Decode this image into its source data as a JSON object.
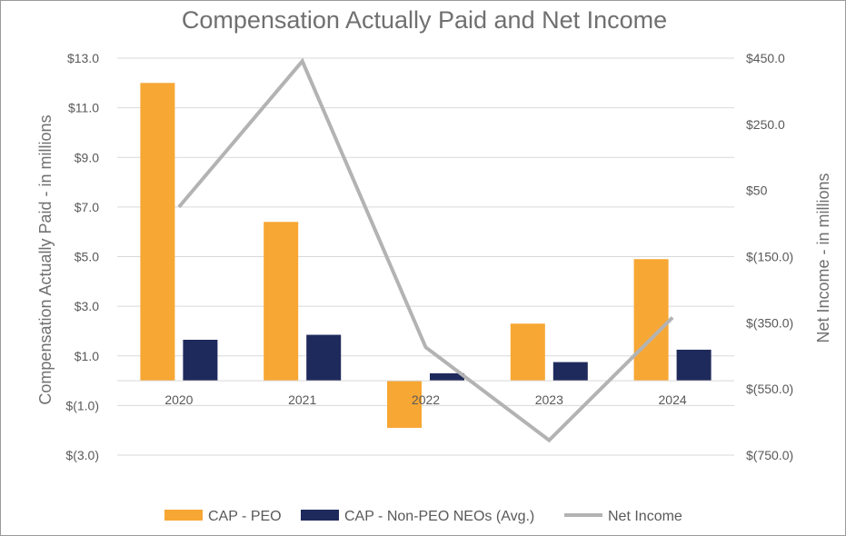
{
  "colors": {
    "peo": "#F7A734",
    "non_peo": "#1F2A5C",
    "net_income": "#B3B3B3",
    "grid": "#D9D9D9",
    "text": "#595959"
  },
  "chart_data": {
    "type": "bar",
    "title": "Compensation Actually Paid and Net Income",
    "categories": [
      "2020",
      "2021",
      "2022",
      "2023",
      "2024"
    ],
    "ylabel": "Compensation Actually Paid - in millions",
    "y2label": "Net Income - in millions",
    "ylim": [
      -3.0,
      13.0
    ],
    "y2lim": [
      -750.0,
      450.0
    ],
    "yticks": [
      {
        "value": 13.0,
        "label": "$13.0"
      },
      {
        "value": 11.0,
        "label": "$11.0"
      },
      {
        "value": 9.0,
        "label": "$9.0"
      },
      {
        "value": 7.0,
        "label": "$7.0"
      },
      {
        "value": 5.0,
        "label": "$5.0"
      },
      {
        "value": 3.0,
        "label": "$3.0"
      },
      {
        "value": 1.0,
        "label": "$1.0"
      },
      {
        "value": -1.0,
        "label": "$(1.0)"
      },
      {
        "value": -3.0,
        "label": "$(3.0)"
      }
    ],
    "y2ticks": [
      {
        "value": 450.0,
        "label": "$450.0"
      },
      {
        "value": 250.0,
        "label": "$250.0"
      },
      {
        "value": 50.0,
        "label": "$50"
      },
      {
        "value": -150.0,
        "label": "$(150.0)"
      },
      {
        "value": -350.0,
        "label": "$(350.0)"
      },
      {
        "value": -550.0,
        "label": "$(550.0)"
      },
      {
        "value": -750.0,
        "label": "$(750.0)"
      }
    ],
    "series": [
      {
        "name": "CAP - PEO",
        "type": "bar",
        "axis": "left",
        "values": [
          12.0,
          6.4,
          -1.9,
          2.3,
          4.9
        ]
      },
      {
        "name": "CAP - Non-PEO NEOs (Avg.)",
        "type": "bar",
        "axis": "left",
        "values": [
          1.65,
          1.85,
          0.3,
          0.75,
          1.25
        ]
      },
      {
        "name": "Net Income",
        "type": "line",
        "axis": "right",
        "values": [
          0,
          441,
          -424,
          -705,
          -334
        ]
      }
    ],
    "legend_position": "bottom",
    "grid": true
  }
}
